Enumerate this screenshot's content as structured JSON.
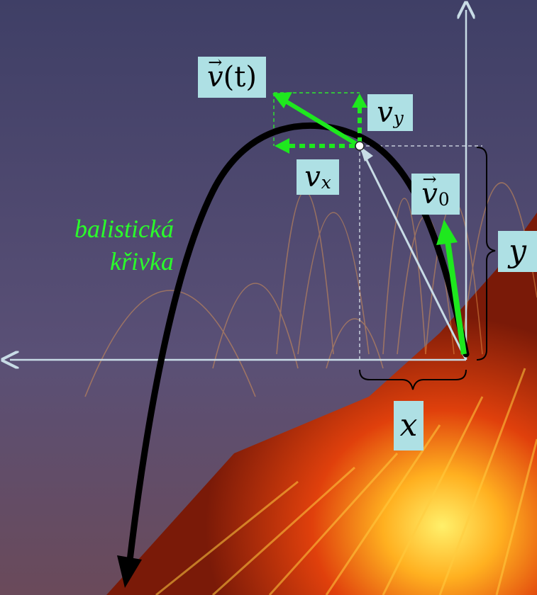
{
  "labels": {
    "velocity_t": {
      "symbol": "v",
      "arg": "(t)"
    },
    "v_y": {
      "symbol": "v",
      "sub": "y"
    },
    "v_x": {
      "symbol": "v",
      "sub": "x"
    },
    "v_0": {
      "symbol": "v",
      "sub": "0"
    },
    "y_axis": "y",
    "x_axis": "x"
  },
  "curve_label": {
    "line1": "balistická",
    "line2": "křivka"
  },
  "colors": {
    "trajectory": "#000000",
    "vector": "#1ee81e",
    "axis": "#c8dce6",
    "label_bg": "#aee0e4",
    "curve_text": "#2aff2a"
  },
  "background": {
    "sky": "#4a4a6e",
    "lava": "#e84a10"
  }
}
